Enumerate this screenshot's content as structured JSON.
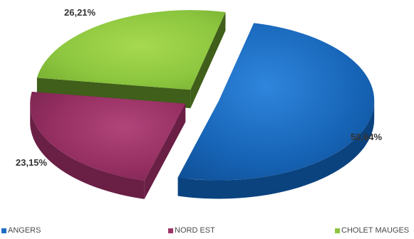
{
  "chart_data": {
    "type": "pie",
    "labels": [
      "ANGERS",
      "NORD EST",
      "CHOLET MAUGES"
    ],
    "values": [
      50.64,
      23.15,
      26.21
    ],
    "value_labels": [
      "50,64%",
      "23,15%",
      "26,21%"
    ],
    "colors": [
      "#1e6ec2",
      "#9c3468",
      "#8cc63f"
    ],
    "legend_position": "bottom",
    "exploded": true,
    "style": "3d"
  }
}
